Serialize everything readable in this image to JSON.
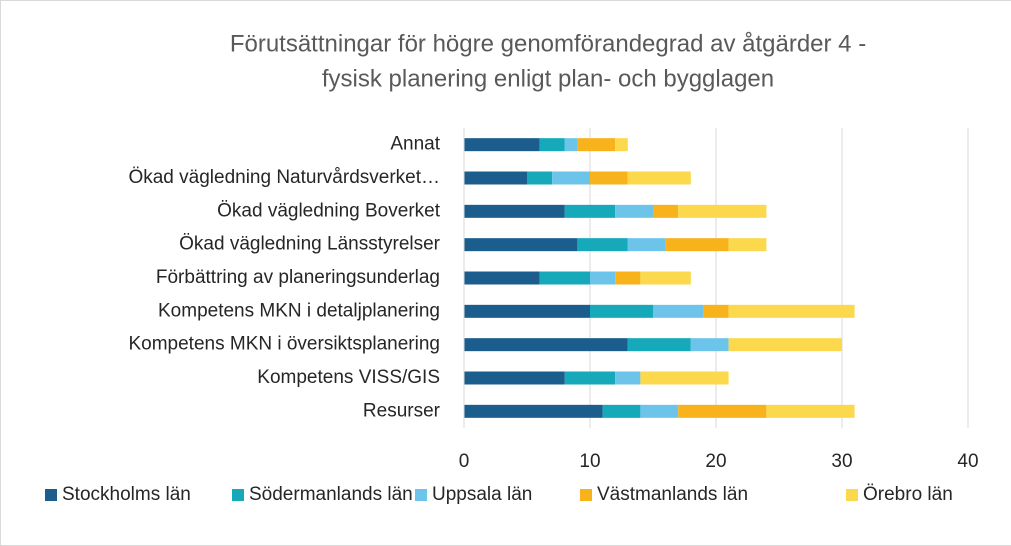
{
  "chart_data": {
    "type": "stacked_bar_horizontal",
    "title": [
      "Förutsättningar för högre genomförandegrad av åtgärder 4 -",
      "fysisk planering enligt plan- och bygglagen"
    ],
    "categories": [
      "Annat",
      "Ökad vägledning Naturvårdsverket…",
      "Ökad vägledning Boverket",
      "Ökad vägledning Länsstyrelser",
      "Förbättring av planeringsunderlag",
      "Kompetens MKN i detaljplanering",
      "Kompetens MKN i översiktsplanering",
      "Kompetens VISS/GIS",
      "Resurser"
    ],
    "series": [
      {
        "name": "Stockholms län",
        "color": "#1b5e8e",
        "values": [
          6,
          5,
          8,
          9,
          6,
          10,
          13,
          8,
          11
        ]
      },
      {
        "name": "Södermanlands län",
        "color": "#16a9b9",
        "values": [
          2,
          2,
          4,
          4,
          4,
          5,
          5,
          4,
          3
        ]
      },
      {
        "name": "Uppsala län",
        "color": "#6cc4ea",
        "values": [
          1,
          3,
          3,
          3,
          2,
          4,
          3,
          2,
          3
        ]
      },
      {
        "name": "Västmanlands län",
        "color": "#f8b21c",
        "values": [
          3,
          3,
          2,
          5,
          2,
          2,
          0,
          0,
          7
        ]
      },
      {
        "name": "Örebro län",
        "color": "#fcd94c",
        "values": [
          1,
          5,
          7,
          3,
          4,
          10,
          9,
          7,
          7
        ]
      }
    ],
    "xlim": [
      0,
      40
    ],
    "xticks": [
      0,
      10,
      20,
      30,
      40
    ],
    "grid": true,
    "legend": "bottom"
  }
}
